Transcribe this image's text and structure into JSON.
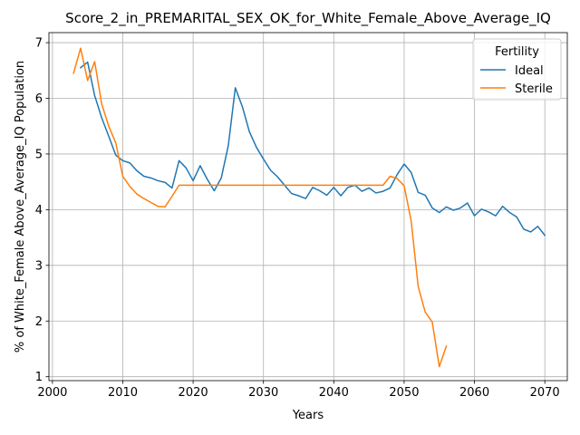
{
  "chart_data": {
    "type": "line",
    "title": "Score_2_in_PREMARITAL_SEX_OK_for_White_Female_Above_Average_IQ",
    "xlabel": "Years",
    "ylabel": "% of White_Female Above_Average_IQ Population",
    "xlim": [
      1999.5,
      2073.2
    ],
    "ylim": [
      0.93,
      7.18
    ],
    "xticks": [
      2000,
      2010,
      2020,
      2030,
      2040,
      2050,
      2060,
      2070
    ],
    "yticks": [
      1,
      2,
      3,
      4,
      5,
      6,
      7
    ],
    "grid": true,
    "legend": {
      "title": "Fertility",
      "placement": "top-right"
    },
    "series": [
      {
        "name": "Ideal",
        "color": "#1f77b4",
        "x": [
          2004,
          2005,
          2006,
          2007,
          2008,
          2009,
          2010,
          2011,
          2012,
          2013,
          2014,
          2015,
          2016,
          2017,
          2018,
          2019,
          2020,
          2021,
          2022,
          2023,
          2024,
          2025,
          2026,
          2027,
          2028,
          2029,
          2030,
          2031,
          2032,
          2033,
          2034,
          2035,
          2036,
          2037,
          2038,
          2039,
          2040,
          2041,
          2042,
          2043,
          2044,
          2045,
          2046,
          2047,
          2048,
          2049,
          2050,
          2051,
          2052,
          2053,
          2054,
          2055,
          2056,
          2057,
          2058,
          2059,
          2060,
          2061,
          2062,
          2063,
          2064,
          2065,
          2066,
          2067,
          2068,
          2069,
          2070
        ],
        "y": [
          6.55,
          6.65,
          6.05,
          5.65,
          5.32,
          4.98,
          4.88,
          4.84,
          4.7,
          4.6,
          4.57,
          4.52,
          4.49,
          4.39,
          4.88,
          4.75,
          4.52,
          4.79,
          4.55,
          4.34,
          4.57,
          5.15,
          6.19,
          5.85,
          5.4,
          5.12,
          4.91,
          4.71,
          4.59,
          4.44,
          4.29,
          4.25,
          4.2,
          4.4,
          4.34,
          4.26,
          4.4,
          4.25,
          4.4,
          4.44,
          4.33,
          4.39,
          4.3,
          4.33,
          4.39,
          4.63,
          4.82,
          4.67,
          4.31,
          4.26,
          4.03,
          3.95,
          4.05,
          3.99,
          4.03,
          4.12,
          3.89,
          4.01,
          3.96,
          3.89,
          4.06,
          3.95,
          3.87,
          3.65,
          3.6,
          3.7,
          3.54
        ]
      },
      {
        "name": "Sterile",
        "color": "#ff7f0e",
        "x": [
          2003,
          2004,
          2005,
          2006,
          2007,
          2008,
          2009,
          2010,
          2011,
          2012,
          2013,
          2014,
          2015,
          2016,
          2017,
          2018,
          2019,
          2020,
          2021,
          2022,
          2023,
          2024,
          2025,
          2026,
          2027,
          2028,
          2029,
          2030,
          2031,
          2032,
          2033,
          2034,
          2035,
          2036,
          2037,
          2038,
          2039,
          2040,
          2041,
          2042,
          2043,
          2044,
          2045,
          2046,
          2047,
          2048,
          2049,
          2050,
          2051,
          2052,
          2053,
          2054,
          2055,
          2056
        ],
        "y": [
          6.45,
          6.9,
          6.32,
          6.66,
          5.9,
          5.5,
          5.2,
          4.6,
          4.42,
          4.28,
          4.2,
          4.13,
          4.06,
          4.05,
          4.24,
          4.44,
          4.44,
          4.44,
          4.44,
          4.44,
          4.44,
          4.44,
          4.44,
          4.44,
          4.44,
          4.44,
          4.44,
          4.44,
          4.44,
          4.44,
          4.44,
          4.44,
          4.44,
          4.44,
          4.44,
          4.44,
          4.44,
          4.44,
          4.44,
          4.44,
          4.44,
          4.44,
          4.44,
          4.44,
          4.44,
          4.6,
          4.56,
          4.43,
          3.8,
          2.62,
          2.16,
          1.98,
          1.18,
          1.55
        ]
      }
    ]
  }
}
